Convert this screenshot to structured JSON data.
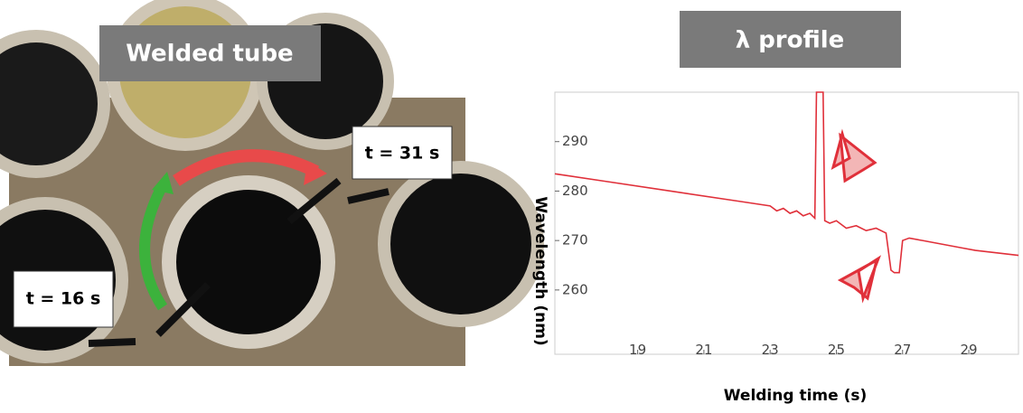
{
  "left_panel": {
    "title": "Welded tube",
    "labels": [
      "t = 16 s",
      "t = 31 s"
    ]
  },
  "chart_data": {
    "type": "line",
    "title": "λ profile",
    "x_label": "Welding time (s)",
    "y_label": "Wavelength (nm)",
    "x": [
      16.5,
      18,
      20,
      22,
      23,
      23.2,
      23.4,
      23.6,
      23.8,
      24.0,
      24.2,
      24.35,
      24.4,
      24.6,
      24.65,
      24.8,
      25.0,
      25.3,
      25.6,
      25.9,
      26.2,
      26.5,
      26.65,
      26.75,
      26.9,
      27.0,
      27.2,
      27.6,
      28.0,
      28.4,
      28.8,
      29.2,
      30.5
    ],
    "series": [
      {
        "color": "#e0303a",
        "values": [
          283.5,
          282,
          280,
          278,
          277,
          276,
          276.5,
          275.5,
          276,
          275,
          275.5,
          274.5,
          300,
          300,
          274,
          273.5,
          274,
          272.5,
          273,
          272,
          272.5,
          271.5,
          264,
          263.5,
          263.5,
          270,
          270.5,
          270,
          269.5,
          269,
          268.5,
          268,
          267
        ]
      }
    ],
    "xlim": [
      16.5,
      30.5
    ],
    "ylim": [
      247,
      300
    ],
    "xticks": [
      19,
      21,
      23,
      25,
      27,
      29
    ],
    "yticks": [
      260,
      270,
      280,
      290
    ]
  }
}
